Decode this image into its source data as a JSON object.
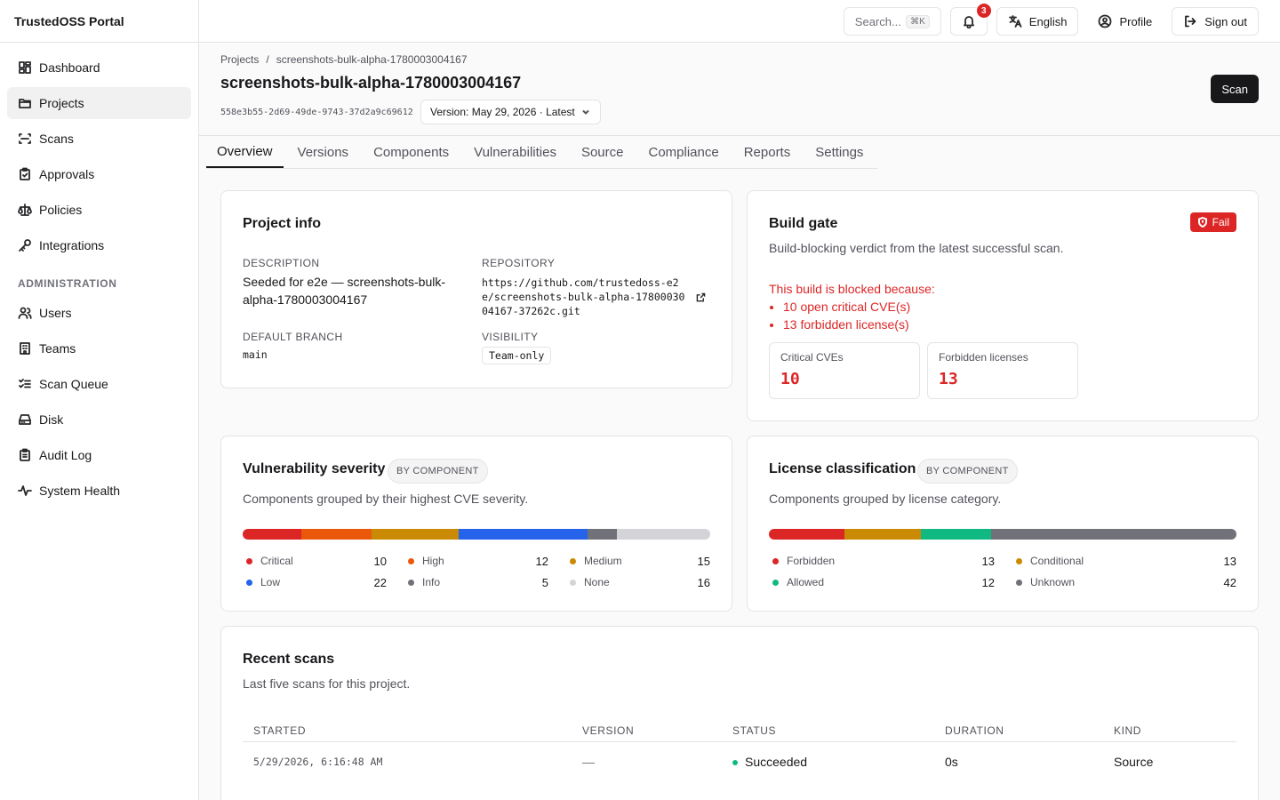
{
  "app": {
    "title": "TrustedOSS Portal"
  },
  "sidebar": {
    "items": [
      {
        "label": "Dashboard",
        "icon": "dashboard-icon"
      },
      {
        "label": "Projects",
        "icon": "folder-icon",
        "active": true
      },
      {
        "label": "Scans",
        "icon": "scan-icon"
      },
      {
        "label": "Approvals",
        "icon": "clipboard-check-icon"
      },
      {
        "label": "Policies",
        "icon": "scale-icon"
      },
      {
        "label": "Integrations",
        "icon": "key-icon"
      }
    ],
    "section_label": "ADMINISTRATION",
    "admin_items": [
      {
        "label": "Users",
        "icon": "users-icon"
      },
      {
        "label": "Teams",
        "icon": "building-icon"
      },
      {
        "label": "Scan Queue",
        "icon": "list-checks-icon"
      },
      {
        "label": "Disk",
        "icon": "hard-drive-icon"
      },
      {
        "label": "Audit Log",
        "icon": "clipboard-list-icon"
      },
      {
        "label": "System Health",
        "icon": "activity-icon"
      }
    ]
  },
  "topbar": {
    "search_placeholder": "Search...",
    "search_shortcut": "⌘K",
    "notification_count": "3",
    "language_label": "English",
    "profile_label": "Profile",
    "signout_label": "Sign out"
  },
  "header": {
    "breadcrumb_root": "Projects",
    "breadcrumb_sep": "/",
    "breadcrumb_current": "screenshots-bulk-alpha-1780003004167",
    "title": "screenshots-bulk-alpha-1780003004167",
    "uuid": "558e3b55-2d69-49de-9743-37d2a9c69612",
    "version_label": "Version: May 29, 2026 · Latest",
    "scan_button": "Scan"
  },
  "tabs": [
    "Overview",
    "Versions",
    "Components",
    "Vulnerabilities",
    "Source",
    "Compliance",
    "Reports",
    "Settings"
  ],
  "project_info": {
    "title": "Project info",
    "description_label": "DESCRIPTION",
    "description_line1": "Seeded for e2e — screenshots-bulk-",
    "description_line2": "alpha-1780003004167",
    "repository_label": "REPOSITORY",
    "repository_line1": "https://github.com/trustedoss-e2",
    "repository_line2": "e/screenshots-bulk-alpha-17800030",
    "repository_line3": "04167-37262c.git",
    "branch_label": "DEFAULT BRANCH",
    "branch_value": "main",
    "visibility_label": "VISIBILITY",
    "visibility_value": "Team-only"
  },
  "build_gate": {
    "title": "Build gate",
    "status": "Fail",
    "subtitle": "Build-blocking verdict from the latest successful scan.",
    "blocked_heading": "This build is blocked because:",
    "reasons": [
      "10 open critical CVE(s)",
      "13 forbidden license(s)"
    ],
    "critical_label": "Critical CVEs",
    "critical_value": "10",
    "forbidden_label": "Forbidden licenses",
    "forbidden_value": "13"
  },
  "vuln_severity": {
    "title": "Vulnerability severity",
    "badge": "BY COMPONENT",
    "subtitle": "Components grouped by their highest CVE severity.",
    "segments": [
      {
        "label": "Critical",
        "value": 10,
        "color": "#dc2626"
      },
      {
        "label": "High",
        "value": 12,
        "color": "#ea580c"
      },
      {
        "label": "Medium",
        "value": 15,
        "color": "#ca8a04"
      },
      {
        "label": "Low",
        "value": 22,
        "color": "#2563eb"
      },
      {
        "label": "Info",
        "value": 5,
        "color": "#71717a"
      },
      {
        "label": "None",
        "value": 16,
        "color": "#d4d4d8"
      }
    ]
  },
  "license_class": {
    "title": "License classification",
    "badge": "BY COMPONENT",
    "subtitle": "Components grouped by license category.",
    "segments": [
      {
        "label": "Forbidden",
        "value": 13,
        "color": "#dc2626"
      },
      {
        "label": "Conditional",
        "value": 13,
        "color": "#ca8a04"
      },
      {
        "label": "Allowed",
        "value": 12,
        "color": "#10b981"
      },
      {
        "label": "Unknown",
        "value": 42,
        "color": "#71717a"
      }
    ]
  },
  "recent_scans": {
    "title": "Recent scans",
    "subtitle": "Last five scans for this project.",
    "columns": [
      "STARTED",
      "VERSION",
      "STATUS",
      "DURATION",
      "KIND"
    ],
    "rows": [
      {
        "started": "5/29/2026, 6:16:48 AM",
        "version": "—",
        "status": "Succeeded",
        "duration": "0s",
        "kind": "Source"
      }
    ]
  }
}
